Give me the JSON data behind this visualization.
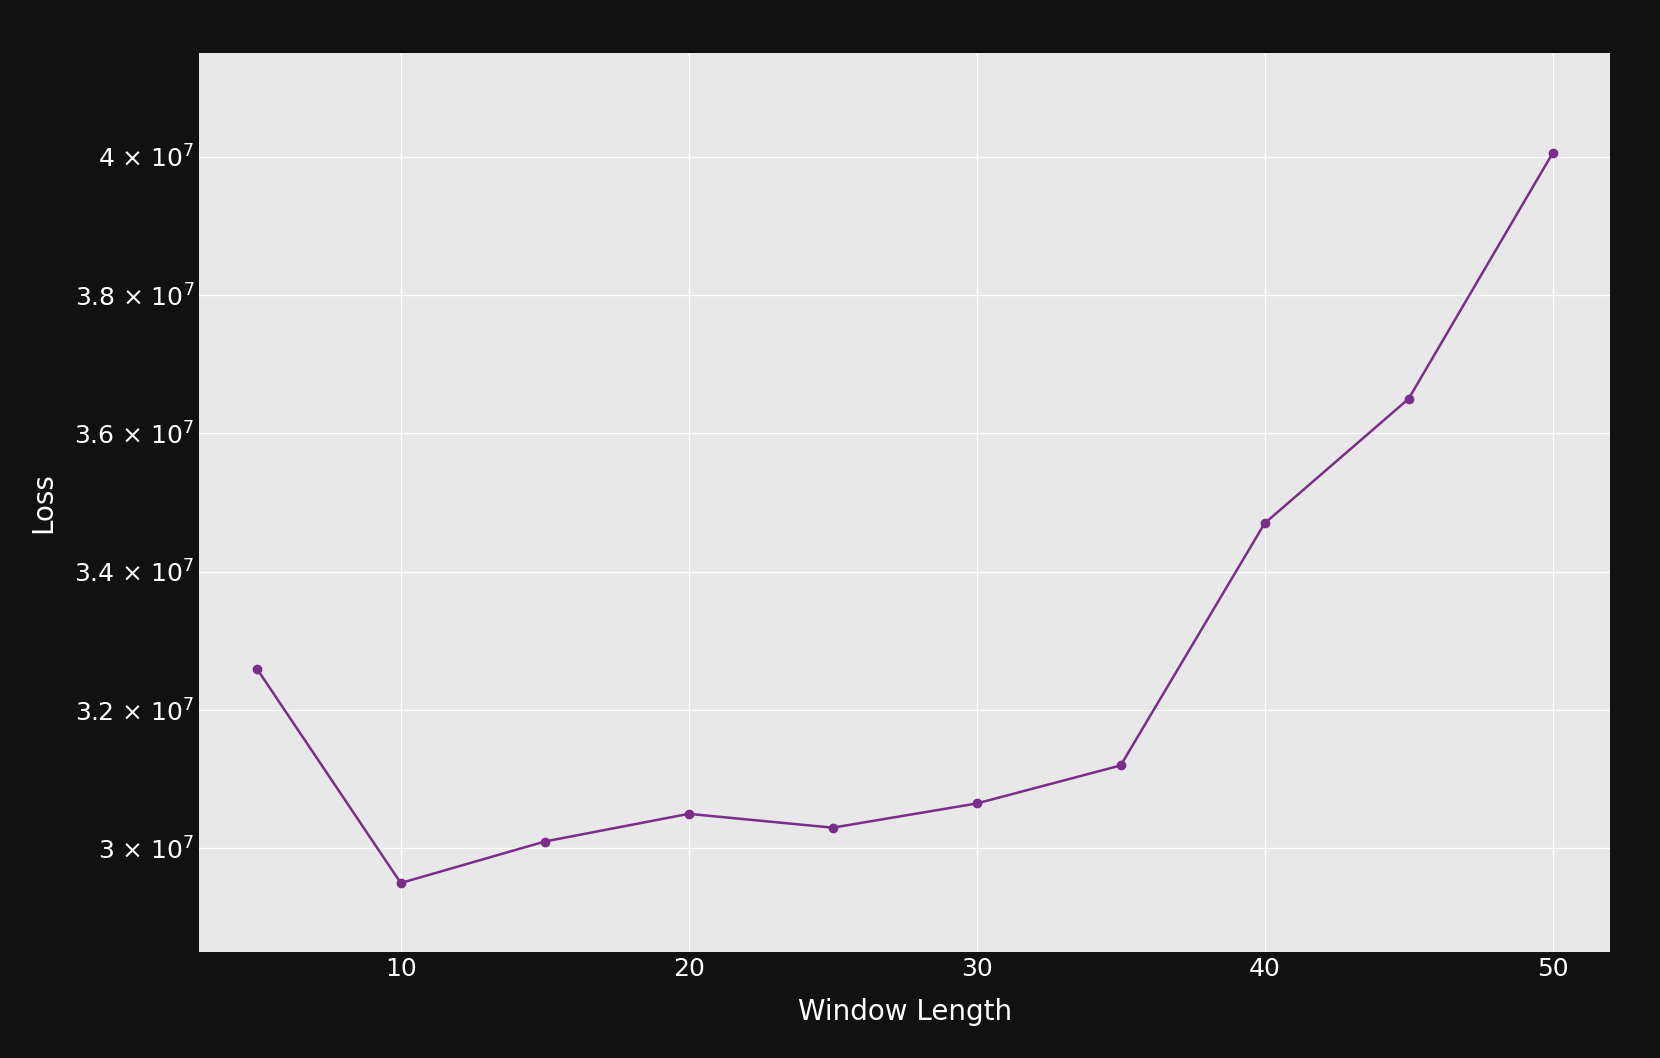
{
  "x": [
    5,
    10,
    15,
    20,
    25,
    30,
    35,
    40,
    45,
    50
  ],
  "y": [
    32600000,
    29500000,
    30100000,
    30500000,
    30300000,
    30650000,
    31200000,
    34700000,
    36500000,
    40050000
  ],
  "line_color": "#7b2d8b",
  "marker": "o",
  "marker_size": 6,
  "linewidth": 1.8,
  "xlabel": "Window Length",
  "ylabel": "Loss",
  "xlabel_fontsize": 20,
  "ylabel_fontsize": 20,
  "tick_fontsize": 18,
  "background_color": "#111111",
  "plot_bg_color": "#e8e8e8",
  "grid_color": "#ffffff",
  "ylim": [
    28500000,
    41500000
  ],
  "xlim": [
    3,
    52
  ],
  "xticks": [
    10,
    20,
    30,
    40,
    50
  ],
  "yticks": [
    30000000,
    32000000,
    34000000,
    36000000,
    38000000,
    40000000
  ]
}
